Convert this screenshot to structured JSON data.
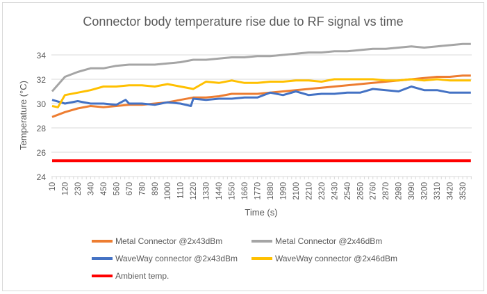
{
  "chart_data": {
    "type": "line",
    "title": "Connector body temperature rise due to RF signal vs time",
    "xlabel": "Time (s)",
    "ylabel": "Temperature (°C)",
    "ylim": [
      24,
      35
    ],
    "yticks": [
      24,
      26,
      28,
      30,
      32,
      34
    ],
    "xticks": [
      "10",
      "120",
      "230",
      "340",
      "450",
      "560",
      "670",
      "780",
      "890",
      "1000",
      "1110",
      "1220",
      "1330",
      "1440",
      "1550",
      "1660",
      "1770",
      "1880",
      "1990",
      "2100",
      "2210",
      "2320",
      "2430",
      "2540",
      "2650",
      "2760",
      "2870",
      "2980",
      "3090",
      "3200",
      "3310",
      "3420",
      "3530"
    ],
    "grid": "horizontal",
    "legend": "bottom",
    "series": [
      {
        "name": "Metal Connector @2x43dBm",
        "color": "#ed7d31",
        "x": [
          10,
          120,
          230,
          340,
          450,
          560,
          670,
          780,
          890,
          1000,
          1110,
          1220,
          1330,
          1440,
          1550,
          1660,
          1770,
          1880,
          1990,
          2100,
          2210,
          2320,
          2430,
          2540,
          2650,
          2760,
          2870,
          2980,
          3090,
          3200,
          3310,
          3420,
          3530,
          3600
        ],
        "y": [
          28.9,
          29.3,
          29.6,
          29.8,
          29.7,
          29.8,
          29.9,
          29.9,
          30.0,
          30.1,
          30.3,
          30.5,
          30.5,
          30.6,
          30.8,
          30.8,
          30.8,
          30.9,
          31.0,
          31.1,
          31.2,
          31.3,
          31.4,
          31.5,
          31.6,
          31.7,
          31.8,
          31.9,
          32.0,
          32.1,
          32.2,
          32.2,
          32.3,
          32.3
        ]
      },
      {
        "name": "Metal Connector @2x46dBm",
        "color": "#a5a5a5",
        "x": [
          10,
          120,
          230,
          340,
          450,
          560,
          670,
          780,
          890,
          1000,
          1110,
          1220,
          1330,
          1440,
          1550,
          1660,
          1770,
          1880,
          1990,
          2100,
          2210,
          2320,
          2430,
          2540,
          2650,
          2760,
          2870,
          2980,
          3090,
          3200,
          3310,
          3420,
          3530,
          3600
        ],
        "y": [
          31.0,
          32.2,
          32.6,
          32.9,
          32.9,
          33.1,
          33.2,
          33.2,
          33.2,
          33.3,
          33.4,
          33.6,
          33.6,
          33.7,
          33.8,
          33.8,
          33.9,
          33.9,
          34.0,
          34.1,
          34.2,
          34.2,
          34.3,
          34.3,
          34.4,
          34.5,
          34.5,
          34.6,
          34.7,
          34.6,
          34.7,
          34.8,
          34.9,
          34.9
        ]
      },
      {
        "name": "WaveWay connector @2x43dBm",
        "color": "#4472c4",
        "x": [
          10,
          120,
          230,
          340,
          450,
          560,
          640,
          670,
          780,
          890,
          1000,
          1110,
          1200,
          1220,
          1330,
          1440,
          1550,
          1660,
          1770,
          1880,
          1990,
          2100,
          2210,
          2320,
          2430,
          2540,
          2650,
          2760,
          2870,
          2980,
          3090,
          3200,
          3310,
          3420,
          3530,
          3600
        ],
        "y": [
          30.3,
          30.0,
          30.2,
          30.0,
          30.0,
          29.9,
          30.3,
          30.0,
          30.0,
          29.9,
          30.1,
          30.0,
          29.8,
          30.4,
          30.3,
          30.4,
          30.4,
          30.5,
          30.5,
          30.9,
          30.7,
          31.0,
          30.7,
          30.8,
          30.8,
          30.9,
          30.9,
          31.2,
          31.1,
          31.0,
          31.4,
          31.1,
          31.1,
          30.9,
          30.9,
          30.9
        ]
      },
      {
        "name": "WaveWay connector @2x46dBm",
        "color": "#ffc000",
        "x": [
          10,
          60,
          120,
          230,
          340,
          450,
          560,
          670,
          780,
          890,
          1000,
          1110,
          1220,
          1330,
          1440,
          1550,
          1660,
          1770,
          1880,
          1990,
          2100,
          2210,
          2320,
          2430,
          2540,
          2650,
          2760,
          2870,
          2980,
          3090,
          3200,
          3310,
          3420,
          3530,
          3600
        ],
        "y": [
          29.8,
          29.7,
          30.7,
          30.9,
          31.1,
          31.4,
          31.4,
          31.5,
          31.5,
          31.4,
          31.6,
          31.4,
          31.2,
          31.8,
          31.7,
          31.9,
          31.7,
          31.7,
          31.8,
          31.8,
          31.9,
          31.9,
          31.8,
          32.0,
          32.0,
          32.0,
          32.0,
          31.9,
          31.9,
          32.0,
          31.9,
          32.0,
          31.9,
          31.9,
          31.9
        ]
      },
      {
        "name": "Ambient temp.",
        "color": "#ff0000",
        "x": [
          10,
          3600
        ],
        "y": [
          25.3,
          25.3
        ]
      }
    ]
  }
}
